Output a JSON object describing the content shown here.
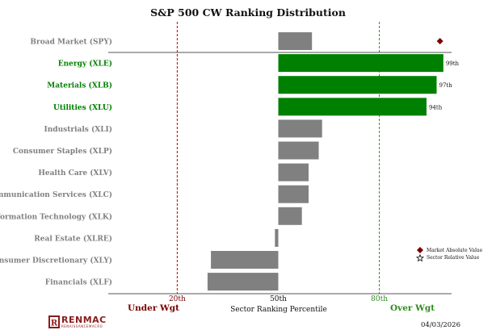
{
  "chart_data": {
    "type": "bar",
    "title": "S&P 500 CW Ranking Distribution",
    "xlabel": "Sector Ranking Percentile",
    "xlim": [
      0,
      100
    ],
    "reference_lines": [
      20,
      50,
      80
    ],
    "tick_labels": [
      "20th",
      "50th",
      "80th"
    ],
    "left_annotation": "Under Wgt",
    "right_annotation": "Over Wgt",
    "date": "04/03/2026",
    "brand": {
      "name": "RENMAC",
      "tagline": "RENAISSANCEMACRO",
      "mark": "R"
    },
    "categories": [
      "Broad Market (SPY)",
      "Energy (XLE)",
      "Materials (XLB)",
      "Utilities (XLU)",
      "Industrials (XLI)",
      "Consumer Staples (XLP)",
      "Health Care (XLV)",
      "Communication Services (XLC)",
      "Information Technology (XLK)",
      "Real Estate (XLRE)",
      "Consumer Discretionary (XLY)",
      "Financials (XLF)"
    ],
    "values": [
      60,
      99,
      97,
      94,
      63,
      62,
      59,
      59,
      57,
      49,
      30,
      29
    ],
    "highlighted": [
      false,
      true,
      true,
      true,
      false,
      false,
      false,
      false,
      false,
      false,
      false,
      false
    ],
    "value_labels": [
      "",
      "99th",
      "97th",
      "94th",
      "",
      "",
      "",
      "",
      "",
      "",
      "",
      ""
    ],
    "market_absolute_value": 98,
    "legend": [
      {
        "label": "Market Absolute Value",
        "marker": "diamond",
        "color": "#7b0000"
      },
      {
        "label": "Sector Relative Value",
        "marker": "star",
        "color": "#000000"
      }
    ],
    "colors": {
      "highlight": "#008000",
      "highlight_label": "#008000",
      "neutral": "#808080",
      "neutral_label": "#808080",
      "under": "#7b0000",
      "over": "#2e8b1e",
      "ref_low": "#c00000",
      "ref_high": "#2e8b1e"
    }
  }
}
